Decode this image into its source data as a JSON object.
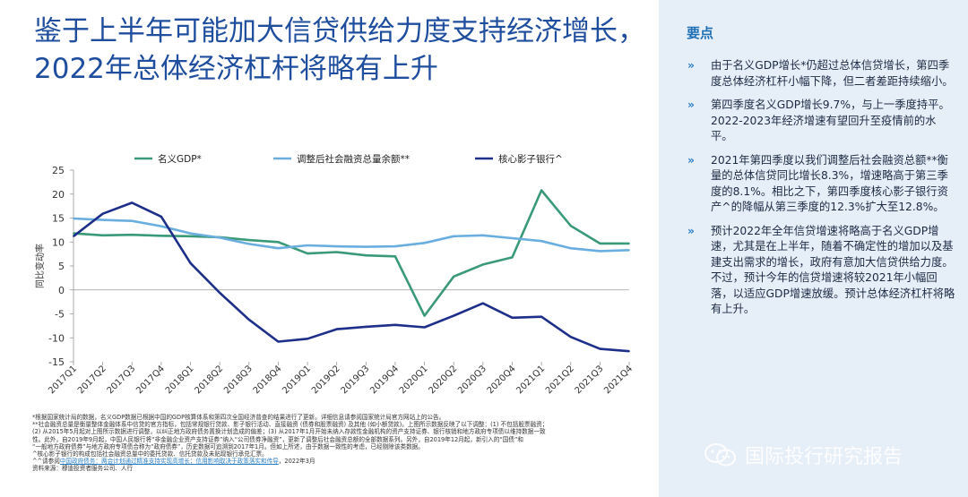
{
  "title": "鉴于上半年可能加大信贷供给力度支持经济增长，2022年总体经济杠杆将略有上升",
  "key_points": {
    "heading": "要点",
    "bullet_symbol": "»",
    "items": [
      "由于名义GDP增长*仍超过总体信贷增长，第四季度总体经济杠杆小幅下降，但二者差距持续缩小。",
      "第四季度名义GDP增长9.7%，与上一季度持平。2022-2023年经济增速有望回升至疫情前的水平。",
      "2021年第四季度以我们调整后社会融资总额**衡量的总体信贷同比增长8.3%，增速略高于第三季度的8.1%。相比之下，第四季度核心影子银行资产^的降幅从第三季度的12.3%扩大至12.8%。",
      "预计2022年全年信贷增速将略高于名义GDP增速，尤其是在上半年，随着不确定性的增加以及基建支出需求的增长，政府有意加大信贷供给力度。不过，预计今年的信贷增速将较2021年小幅回落，以适应GDP增速放缓。预计总体经济杠杆将略有上升。"
    ]
  },
  "chart_data": {
    "type": "line",
    "categories": [
      "2017Q1",
      "2017Q2",
      "2017Q3",
      "2017Q4",
      "2018Q1",
      "2018Q2",
      "2018Q3",
      "2018Q4",
      "2019Q1",
      "2019Q2",
      "2019Q3",
      "2019Q4",
      "2020Q1",
      "2020Q2",
      "2020Q3",
      "2020Q4",
      "2021Q1",
      "2021Q2",
      "2021Q3",
      "2021Q4"
    ],
    "ylabel": "同比变动率",
    "ylim": [
      -15,
      25
    ],
    "yticks": [
      -15,
      -10,
      -5,
      0,
      5,
      10,
      15,
      20,
      25
    ],
    "legend_position": "top",
    "series": [
      {
        "name": "名义GDP*",
        "color": "#3a9a78",
        "values": [
          11.8,
          11.4,
          11.5,
          11.3,
          11.2,
          11.0,
          10.4,
          10.0,
          7.6,
          7.9,
          7.2,
          7.0,
          -5.4,
          2.8,
          5.3,
          6.8,
          20.8,
          13.4,
          9.7,
          9.7
        ]
      },
      {
        "name": "调整后社会融资总量余额**",
        "color": "#6aaee0",
        "values": [
          14.9,
          14.6,
          14.4,
          13.3,
          11.8,
          10.9,
          9.6,
          8.7,
          9.3,
          9.1,
          9.0,
          9.1,
          9.8,
          11.2,
          11.4,
          10.8,
          10.2,
          8.7,
          8.1,
          8.3
        ]
      },
      {
        "name": "核心影子银行^",
        "color": "#1e2f8a",
        "values": [
          11.2,
          15.9,
          18.2,
          15.3,
          5.6,
          -0.6,
          -6.2,
          -10.8,
          -10.2,
          -8.2,
          -7.7,
          -7.3,
          -7.8,
          -5.4,
          -2.8,
          -5.8,
          -5.6,
          -9.8,
          -12.3,
          -12.8
        ]
      }
    ]
  },
  "notes": {
    "lines": [
      "*根据国家统计局的数据，名义GDP数据已根据中国的GDP核算体系和第四次全国经济普查的结果进行了更新。详细信息请参阅国家统计局官方网站上的公告。",
      "**社会融资总量是衡量整体金融体系中信贷的官方指标，包括常规银行贷款、影子银行活动、直接融资 (债券和股票融资) 及其他 (如小额贷款)。上图所示数据反映了以下调整：(1) 不包括股票融资；",
      "(2) 从2015年5月起对上图所示数据进行调整，以纠正地方政府债务置换计划造成的偏差；(3) 从2017年1月开始未纳入存款性金融机构的资产支持证券、银行核销和地方政府专项债以维持数据一致",
      "性。此外，自2019年9月起，中国人民银行将“非金融企业资产支持证券”纳入“公司债券净融资”，更新了调整后社会融资总额的全部数据系列。另外，自2019年12月起，新引入的“国债”和",
      "“一般地方政府债券”与地方政府专项债合称为“政府债券”，历史数据可追溯到2017年1月。但如上所述，由于数据一致性的考虑，已经剔除该类数据。",
      "^核心影子银行的构成包括社会融资总量中的委托贷款、信托贷款及未贴现银行承兑汇票。",
      "资料来源：穆迪投资者服务公司、人行"
    ],
    "ref_prefix": "^^请参阅",
    "ref_link1": "中国政府债务：两会计划通过精准支持实现高增长；信用影响取决于政策落实和传导",
    "ref_suffix": "，2022年3月"
  },
  "watermark": {
    "text": "国际投行研究报告",
    "icon": "wechat-icon"
  }
}
